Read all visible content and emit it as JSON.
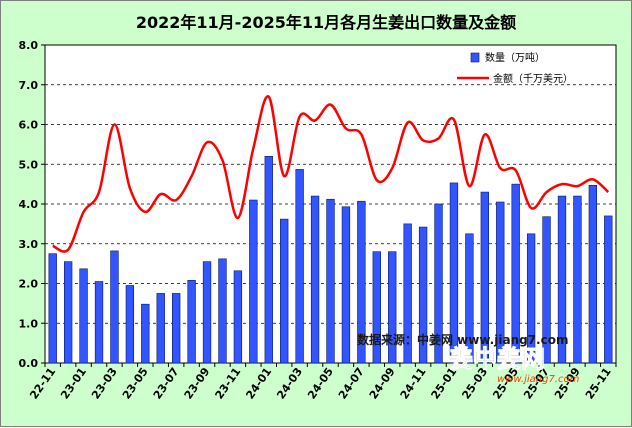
{
  "chart_data": {
    "type": "bar",
    "title": "2022年11月-2025年11月各月生姜出口数量及金额",
    "xlabel": "",
    "ylabel": "",
    "ylim": [
      0,
      8
    ],
    "yticks": [
      "0.0",
      "1.0",
      "2.0",
      "3.0",
      "4.0",
      "5.0",
      "6.0",
      "7.0",
      "8.0"
    ],
    "grid": true,
    "legend_position": "top-right",
    "categories": [
      "22-11",
      "22-12",
      "23-01",
      "23-02",
      "23-03",
      "23-04",
      "23-05",
      "23-06",
      "23-07",
      "23-08",
      "23-09",
      "23-10",
      "23-11",
      "23-12",
      "24-01",
      "24-02",
      "24-03",
      "24-04",
      "24-05",
      "24-06",
      "24-07",
      "24-08",
      "24-09",
      "24-10",
      "24-11",
      "24-12",
      "25-01",
      "25-02",
      "25-03",
      "25-04",
      "25-05",
      "25-06",
      "25-07",
      "25-08",
      "25-09",
      "25-10",
      "25-11"
    ],
    "xtick_labels": [
      "22-11",
      "",
      "23-01",
      "",
      "23-03",
      "",
      "23-05",
      "",
      "23-07",
      "",
      "23-09",
      "",
      "23-11",
      "",
      "24-01",
      "",
      "24-03",
      "",
      "24-05",
      "",
      "24-07",
      "",
      "24-09",
      "",
      "24-11",
      "",
      "25-01",
      "",
      "25-03",
      "",
      "25-05",
      "",
      "25-07",
      "",
      "25-09",
      "",
      "25-11"
    ],
    "series": [
      {
        "name": "数量（万吨）",
        "type": "bar",
        "color": "#3355ff",
        "values": [
          2.75,
          2.55,
          2.37,
          2.05,
          2.82,
          1.95,
          1.48,
          1.75,
          1.75,
          2.08,
          2.55,
          2.62,
          2.32,
          4.1,
          5.2,
          3.62,
          4.87,
          4.2,
          4.12,
          3.93,
          4.07,
          2.8,
          2.8,
          3.5,
          3.42,
          4.0,
          4.53,
          3.25,
          4.3,
          4.05,
          4.5,
          3.25,
          3.68,
          4.2,
          4.2,
          4.47,
          3.7
        ]
      },
      {
        "name": "金额（千万美元）",
        "type": "line",
        "color": "#ff0000",
        "values": [
          2.95,
          2.85,
          3.8,
          4.3,
          6.0,
          4.4,
          3.8,
          4.25,
          4.1,
          4.7,
          5.55,
          5.1,
          3.65,
          5.4,
          6.7,
          4.7,
          6.2,
          6.1,
          6.5,
          5.9,
          5.75,
          4.6,
          4.9,
          6.05,
          5.6,
          5.65,
          6.12,
          4.45,
          5.75,
          4.9,
          4.85,
          3.9,
          4.3,
          4.5,
          4.45,
          4.62,
          4.3
        ]
      }
    ],
    "annotations": [
      "数据来源：中姜网 www.jiang7.com"
    ]
  },
  "watermark": {
    "logo_text": "姜中姜网",
    "url": "www.jiang7.com"
  }
}
